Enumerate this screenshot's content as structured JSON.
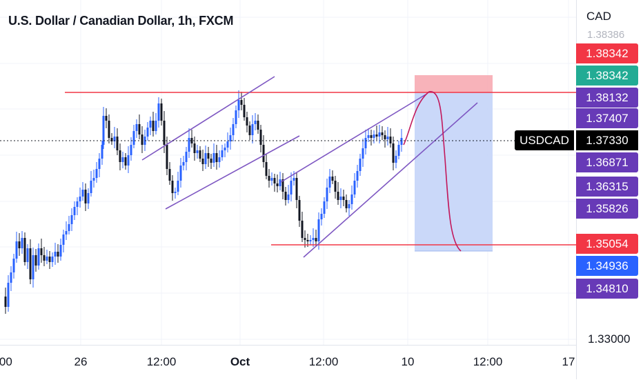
{
  "chart": {
    "title": "U.S. Dollar / Canadian Dollar, 1h, FXCM",
    "symbol": "USDCAD",
    "currency": "CAD",
    "current_price": "1.37330"
  },
  "price_axis": {
    "ticks": [
      "1.38386",
      "1.33000",
      "1.34810"
    ],
    "badges": [
      {
        "label": "1.38342",
        "color": "#f23645"
      },
      {
        "label": "1.38342",
        "color": "#22ab94"
      },
      {
        "label": "1.38132",
        "color": "#673ab7"
      },
      {
        "label": "1.37407",
        "color": "#673ab7"
      },
      {
        "label": "1.36871",
        "color": "#673ab7"
      },
      {
        "label": "1.36315",
        "color": "#673ab7"
      },
      {
        "label": "1.35826",
        "color": "#673ab7"
      },
      {
        "label": "1.35054",
        "color": "#f23645"
      },
      {
        "label": "1.34936",
        "color": "#2962ff"
      },
      {
        "label": "1.34810",
        "color": "#673ab7"
      }
    ]
  },
  "time_axis": {
    "labels": [
      {
        "text": ":00",
        "bold": false
      },
      {
        "text": "26",
        "bold": false
      },
      {
        "text": "12:00",
        "bold": false
      },
      {
        "text": "Oct",
        "bold": true
      },
      {
        "text": "12:00",
        "bold": false
      },
      {
        "text": "10",
        "bold": false
      },
      {
        "text": "12:00",
        "bold": false
      },
      {
        "text": "17",
        "bold": false
      }
    ]
  },
  "colors": {
    "up_candle": "#2962ff",
    "down_candle": "#131722",
    "resistance": "#f23645",
    "channel": "#7e57c2",
    "projection": "#c2185b",
    "stop_zone": "#f7a6ae",
    "target_zone": "#c4d4f8"
  }
}
